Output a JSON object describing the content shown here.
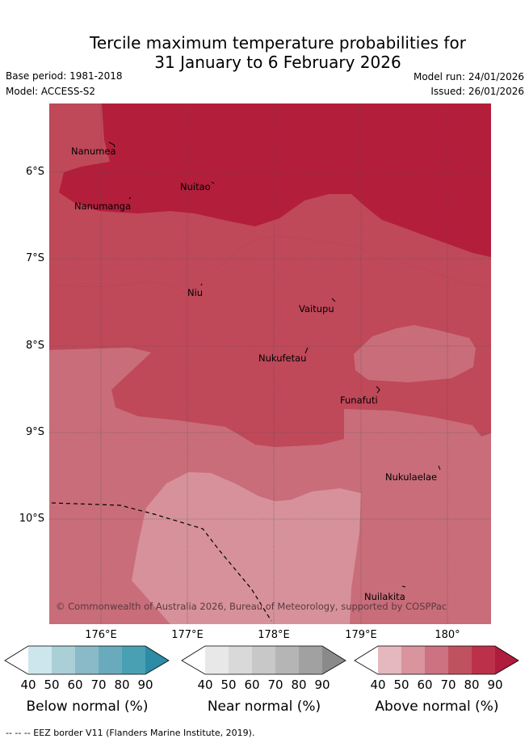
{
  "title": {
    "line1": "Tercile maximum temperature probabilities for",
    "line2": "31 January to 6 February 2026"
  },
  "meta": {
    "base_period": "Base period: 1981-2018",
    "model": "Model: ACCESS-S2",
    "model_run": "Model run: 24/01/2026",
    "issued": "Issued: 26/01/2026"
  },
  "map": {
    "lat_labels": [
      "6°S",
      "7°S",
      "8°S",
      "9°S",
      "10°S"
    ],
    "lon_labels_top": [
      "176°E",
      "178°E",
      "180°"
    ],
    "lon_labels_bottom": [
      "177°E",
      "179°E"
    ],
    "places": [
      "Nanumea",
      "Nuitao",
      "Nanumanga",
      "Niu",
      "Vaitupu",
      "Nukufetau",
      "Funafuti",
      "Nukulaelae",
      "Nuilakita"
    ],
    "copyright": "© Commonwealth of Australia 2026, Bureau of Meteorology, supported by COSPPac",
    "colors": {
      "above_50": "#d7919a",
      "above_60": "#c96d7a",
      "above_70": "#bf4859",
      "above_80": "#b31e3b",
      "gridline": "#555555",
      "eez": "#000000"
    }
  },
  "legends": {
    "ticks": [
      "40",
      "50",
      "60",
      "70",
      "80",
      "90"
    ],
    "below": {
      "title": "Below normal (%)",
      "colors": [
        "#ffffff",
        "#cde5ec",
        "#abcfd6",
        "#8ab9c7",
        "#69abbd",
        "#49a0b3",
        "#2c8ba5"
      ]
    },
    "near": {
      "title": "Near normal (%)",
      "colors": [
        "#ffffff",
        "#e8e8e8",
        "#d9d9d9",
        "#c8c8c8",
        "#b5b5b5",
        "#a1a1a1",
        "#8a8a8a"
      ]
    },
    "above": {
      "title": "Above normal (%)",
      "colors": [
        "#ffffff",
        "#e5b7bf",
        "#d9949e",
        "#cc7280",
        "#c0525f",
        "#bd3049",
        "#b01c3c"
      ]
    }
  },
  "footer": "--  --  -- EEZ border V11 (Flanders Marine Institute, 2019)."
}
